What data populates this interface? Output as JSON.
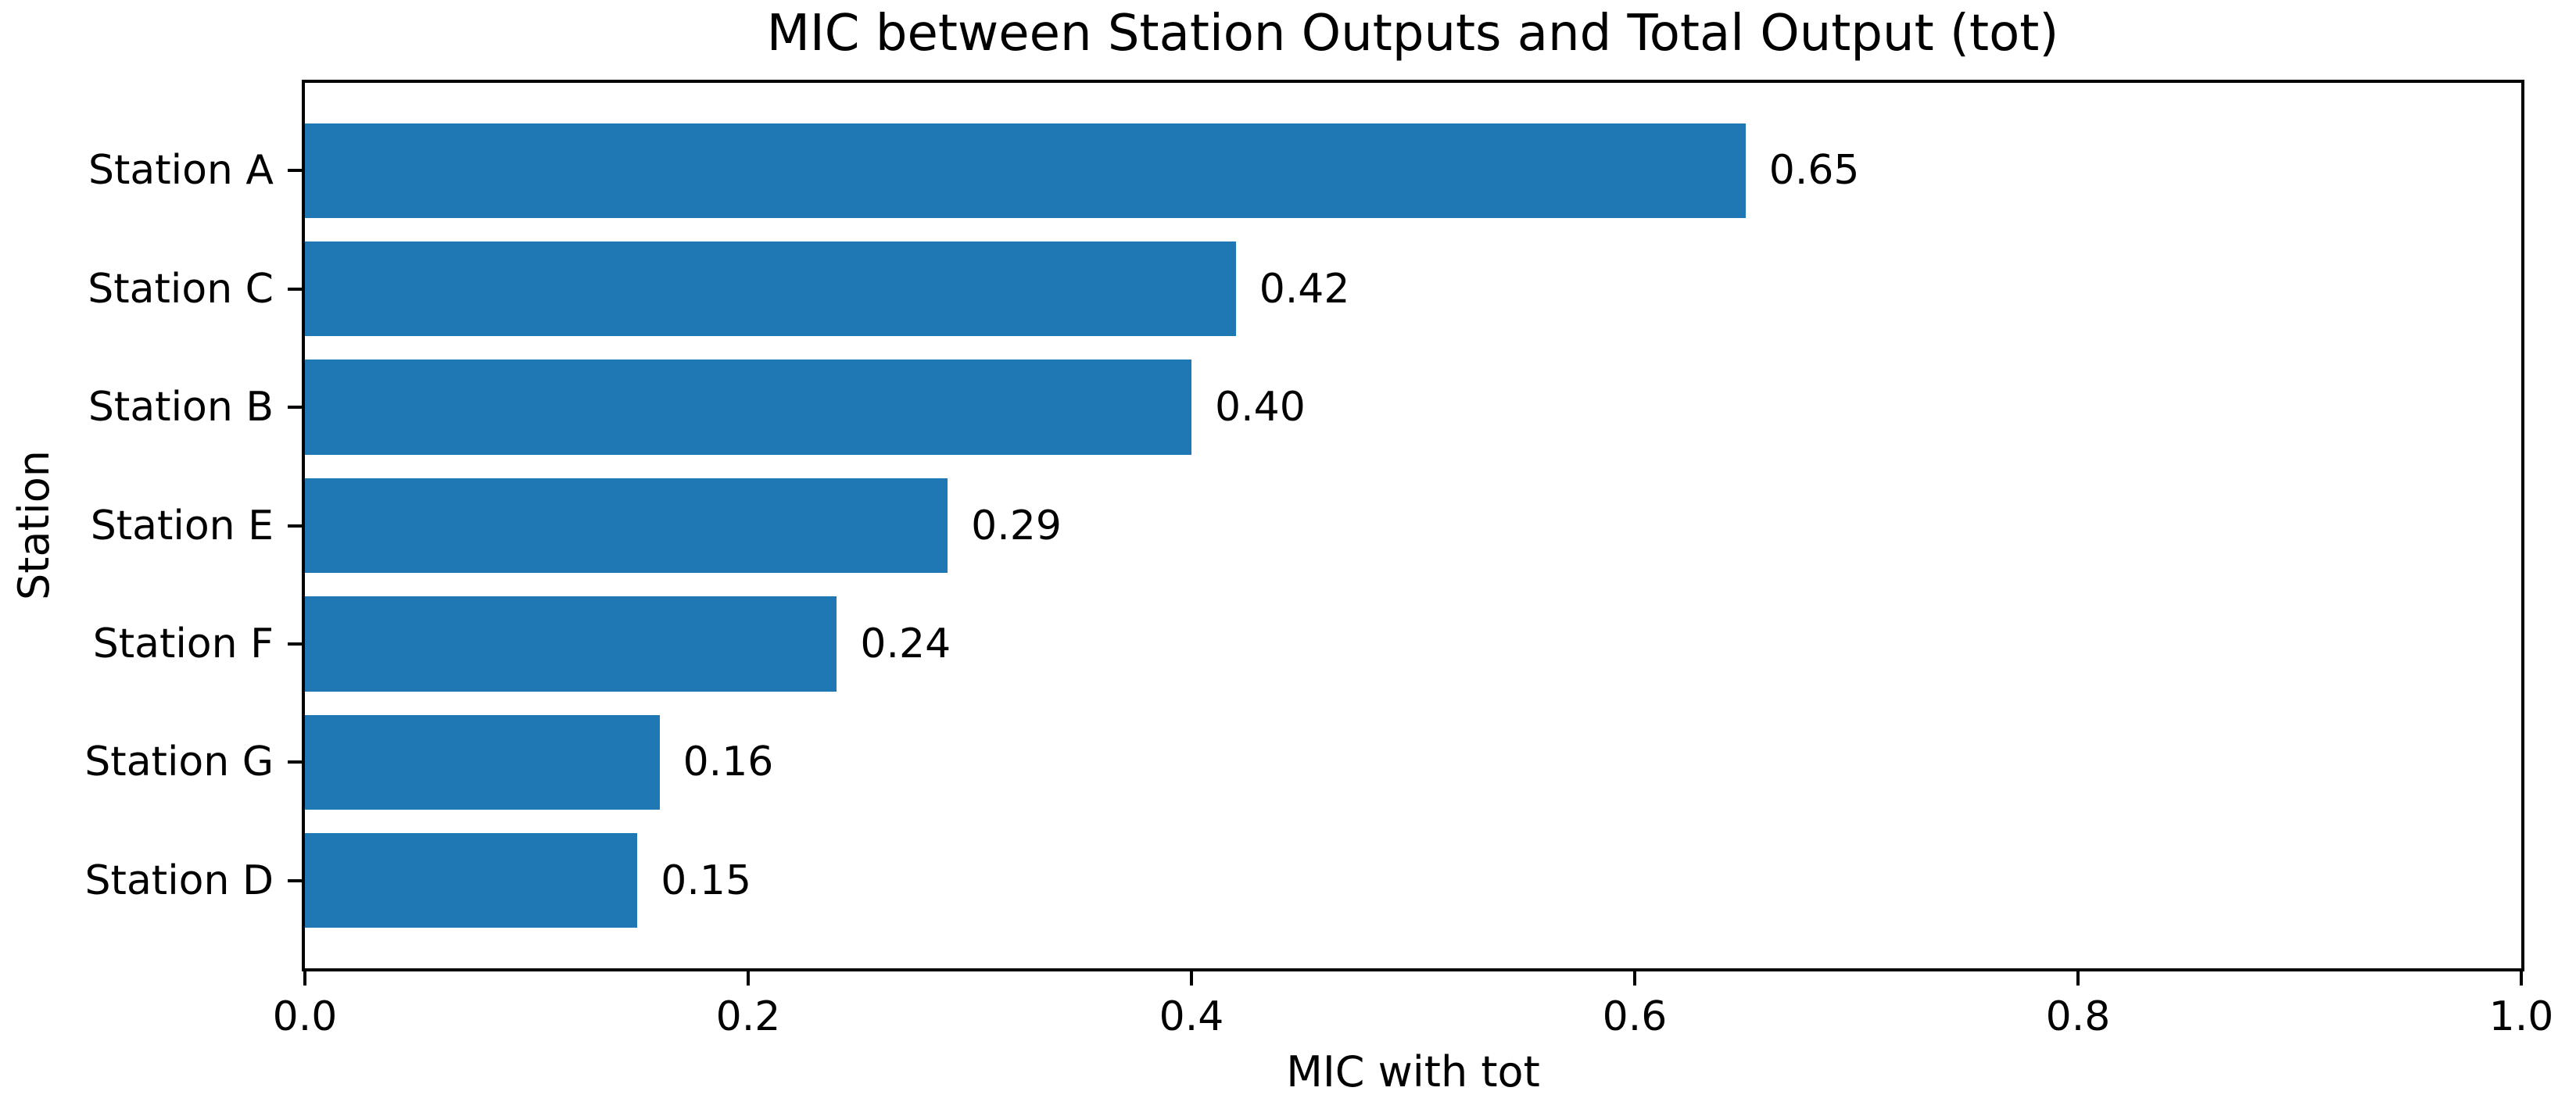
{
  "chart_data": {
    "type": "bar",
    "orientation": "horizontal",
    "title": "MIC between Station Outputs and Total Output (tot)",
    "xlabel": "MIC with tot",
    "ylabel": "Station",
    "categories": [
      "Station A",
      "Station C",
      "Station B",
      "Station E",
      "Station F",
      "Station G",
      "Station D"
    ],
    "values": [
      0.65,
      0.42,
      0.4,
      0.29,
      0.24,
      0.16,
      0.15
    ],
    "value_labels": [
      "0.65",
      "0.42",
      "0.40",
      "0.29",
      "0.24",
      "0.16",
      "0.15"
    ],
    "xlim": [
      0.0,
      1.0
    ],
    "xtick_labels": [
      "0.0",
      "0.2",
      "0.4",
      "0.6",
      "0.8",
      "1.0"
    ],
    "xtick_values": [
      0.0,
      0.2,
      0.4,
      0.6,
      0.8,
      1.0
    ],
    "bar_color": "#1f77b4",
    "text_color": "#000000",
    "background_color": "#ffffff",
    "grid": false,
    "legend": null
  }
}
